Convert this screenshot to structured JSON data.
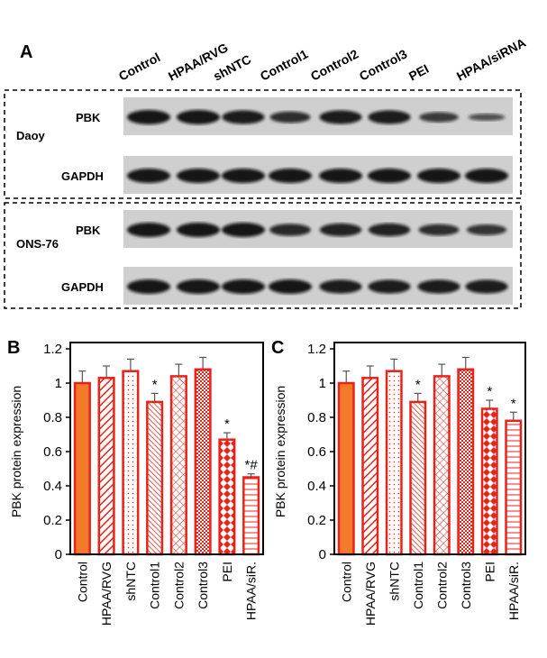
{
  "figure": {
    "panel_label": "A",
    "lanes": [
      "Control",
      "HPAA/RVG",
      "shNTC",
      "Control1",
      "Control2",
      "Control3",
      "PEI",
      "HPAA/siRNA"
    ],
    "groups": [
      {
        "cell_line": "Daoy",
        "rows": [
          "PBK",
          "GAPDH"
        ]
      },
      {
        "cell_line": "ONS-76",
        "rows": [
          "PBK",
          "GAPDH"
        ]
      }
    ]
  },
  "chart_data": [
    {
      "type": "bar",
      "panel_label": "B",
      "y_label": "PBK protein expression",
      "categories": [
        "Control",
        "HPAA/RVG",
        "shNTC",
        "Control1",
        "Control2",
        "Control3",
        "PEI",
        "HPAA/siR."
      ],
      "values": [
        1.0,
        1.03,
        1.07,
        0.89,
        1.04,
        1.08,
        0.67,
        0.45
      ],
      "errors": [
        0.07,
        0.07,
        0.07,
        0.05,
        0.07,
        0.07,
        0.04,
        0.02
      ],
      "annotations": [
        null,
        null,
        null,
        "*",
        null,
        null,
        "*",
        "*#"
      ],
      "color": "#e8231a",
      "ylim": [
        0,
        1.2
      ],
      "yticks": [
        0,
        0.2,
        0.4,
        0.6,
        0.8,
        1,
        1.2
      ]
    },
    {
      "type": "bar",
      "panel_label": "C",
      "y_label": "PBK protein expression",
      "categories": [
        "Control",
        "HPAA/RVG",
        "shNTC",
        "Control1",
        "Control2",
        "Control3",
        "PEI",
        "HPAA/siR."
      ],
      "values": [
        1.0,
        1.03,
        1.07,
        0.89,
        1.04,
        1.08,
        0.85,
        0.78
      ],
      "errors": [
        0.07,
        0.07,
        0.07,
        0.05,
        0.07,
        0.07,
        0.05,
        0.05
      ],
      "annotations": [
        null,
        null,
        null,
        "*",
        null,
        null,
        "*",
        "*"
      ],
      "color": "#e8231a",
      "ylim": [
        0,
        1.2
      ],
      "yticks": [
        0,
        0.2,
        0.4,
        0.6,
        0.8,
        1,
        1.2
      ]
    }
  ]
}
